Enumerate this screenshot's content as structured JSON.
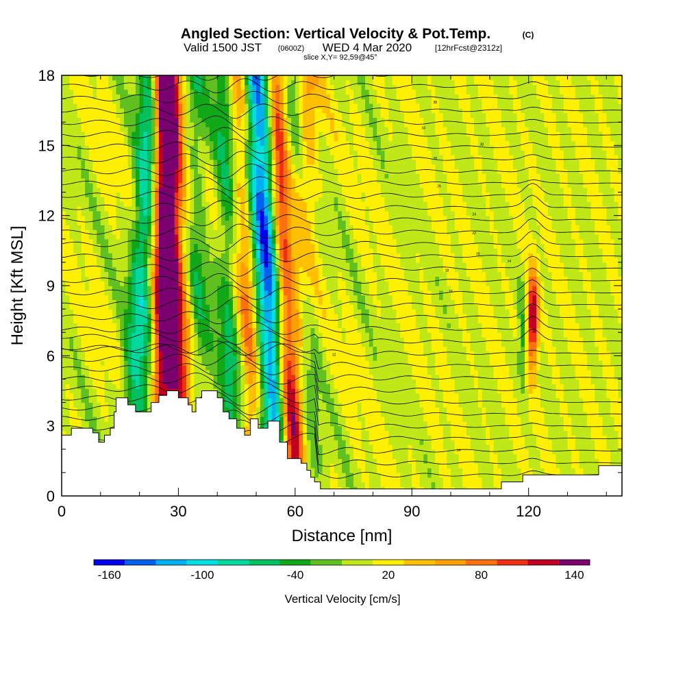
{
  "header": {
    "title": "Angled Section: Vertical Velocity & Pot.Temp.",
    "title_mark": "(C)",
    "valid_line": "Valid 1500 JST",
    "valid_zulu": "(0600Z)",
    "valid_date": "WED 4 Mar 2020",
    "forecast": "[12hrFcst@2312z]",
    "slice": "slice X,Y= 92,59@45°"
  },
  "chart_data": {
    "type": "heatmap",
    "title": "Angled Section: Vertical Velocity & Pot.Temp.",
    "xlabel": "Distance [nm]",
    "ylabel": "Height [Kft MSL]",
    "xlim": [
      0,
      144
    ],
    "ylim": [
      0,
      18
    ],
    "x_ticks": [
      "0",
      "30",
      "60",
      "90",
      "120"
    ],
    "y_ticks": [
      "0",
      "3",
      "6",
      "9",
      "12",
      "15",
      "18"
    ],
    "colorbar": {
      "label": "Vertical Velocity [cm/s]",
      "tick_labels": [
        "-160",
        "-100",
        "-40",
        "20",
        "80",
        "140"
      ],
      "tick_values": [
        -160,
        -100,
        -40,
        20,
        80,
        140
      ],
      "range": [
        -170,
        150
      ],
      "bins": [
        {
          "from": -170,
          "to": -150,
          "color": "#0000ee"
        },
        {
          "from": -150,
          "to": -130,
          "color": "#0060f0"
        },
        {
          "from": -130,
          "to": -110,
          "color": "#00b0f0"
        },
        {
          "from": -110,
          "to": -90,
          "color": "#00e0e0"
        },
        {
          "from": -90,
          "to": -70,
          "color": "#00d8a0"
        },
        {
          "from": -70,
          "to": -50,
          "color": "#00c060"
        },
        {
          "from": -50,
          "to": -30,
          "color": "#10a818"
        },
        {
          "from": -30,
          "to": -10,
          "color": "#60c020"
        },
        {
          "from": -10,
          "to": 10,
          "color": "#c0e818"
        },
        {
          "from": 10,
          "to": 30,
          "color": "#ffef00"
        },
        {
          "from": 30,
          "to": 50,
          "color": "#ffc000"
        },
        {
          "from": 50,
          "to": 70,
          "color": "#ffa000"
        },
        {
          "from": 70,
          "to": 90,
          "color": "#ff7010"
        },
        {
          "from": 90,
          "to": 110,
          "color": "#f03010"
        },
        {
          "from": 110,
          "to": 130,
          "color": "#c00020"
        },
        {
          "from": 130,
          "to": 150,
          "color": "#7a0070"
        }
      ]
    },
    "terrain_kft": [
      [
        0,
        2.6
      ],
      [
        2.5,
        2.6
      ],
      [
        2.5,
        2.9
      ],
      [
        8,
        2.9
      ],
      [
        8,
        2.7
      ],
      [
        9.5,
        2.7
      ],
      [
        9.5,
        2.3
      ],
      [
        11,
        2.3
      ],
      [
        11,
        2.6
      ],
      [
        12.5,
        2.6
      ],
      [
        12.5,
        2.9
      ],
      [
        13.5,
        2.9
      ],
      [
        13.5,
        3.6
      ],
      [
        14,
        3.6
      ],
      [
        14,
        4.2
      ],
      [
        17,
        4.2
      ],
      [
        17,
        3.9
      ],
      [
        19,
        3.9
      ],
      [
        19,
        3.6
      ],
      [
        23,
        3.6
      ],
      [
        23,
        4.0
      ],
      [
        25,
        4.0
      ],
      [
        25,
        4.3
      ],
      [
        27,
        4.3
      ],
      [
        27,
        4.5
      ],
      [
        30,
        4.5
      ],
      [
        30,
        4.2
      ],
      [
        32.5,
        4.2
      ],
      [
        32.5,
        3.9
      ],
      [
        33.5,
        3.9
      ],
      [
        33.5,
        3.6
      ],
      [
        34.5,
        3.6
      ],
      [
        34.5,
        4.2
      ],
      [
        36,
        4.2
      ],
      [
        36,
        4.5
      ],
      [
        40,
        4.5
      ],
      [
        40,
        4.2
      ],
      [
        41.5,
        4.2
      ],
      [
        41.5,
        3.6
      ],
      [
        43,
        3.6
      ],
      [
        43,
        3.3
      ],
      [
        45,
        3.3
      ],
      [
        45,
        2.9
      ],
      [
        47,
        2.9
      ],
      [
        47,
        2.6
      ],
      [
        48.5,
        2.6
      ],
      [
        48.5,
        3.3
      ],
      [
        50.5,
        3.3
      ],
      [
        50.5,
        2.9
      ],
      [
        53,
        2.9
      ],
      [
        53,
        3.2
      ],
      [
        56,
        3.2
      ],
      [
        56,
        2.3
      ],
      [
        58,
        2.3
      ],
      [
        58,
        1.6
      ],
      [
        61.5,
        1.6
      ],
      [
        61.5,
        1.4
      ],
      [
        63,
        1.4
      ],
      [
        63,
        1.1
      ],
      [
        64,
        1.1
      ],
      [
        64,
        0.8
      ],
      [
        65,
        0.8
      ],
      [
        65,
        0.6
      ],
      [
        66.5,
        0.6
      ],
      [
        66.5,
        0.3
      ],
      [
        113,
        0.3
      ],
      [
        113,
        0.6
      ],
      [
        118.5,
        0.6
      ],
      [
        118.5,
        0.9
      ],
      [
        128,
        0.9
      ],
      [
        128,
        0.9
      ],
      [
        138,
        0.9
      ],
      [
        138,
        1.3
      ],
      [
        144,
        1.3
      ]
    ],
    "theta_labels": [
      "38",
      "34",
      "30",
      "28",
      "26",
      "24",
      "22",
      "20",
      "18",
      "16",
      "14",
      "12",
      "10",
      "14"
    ]
  }
}
